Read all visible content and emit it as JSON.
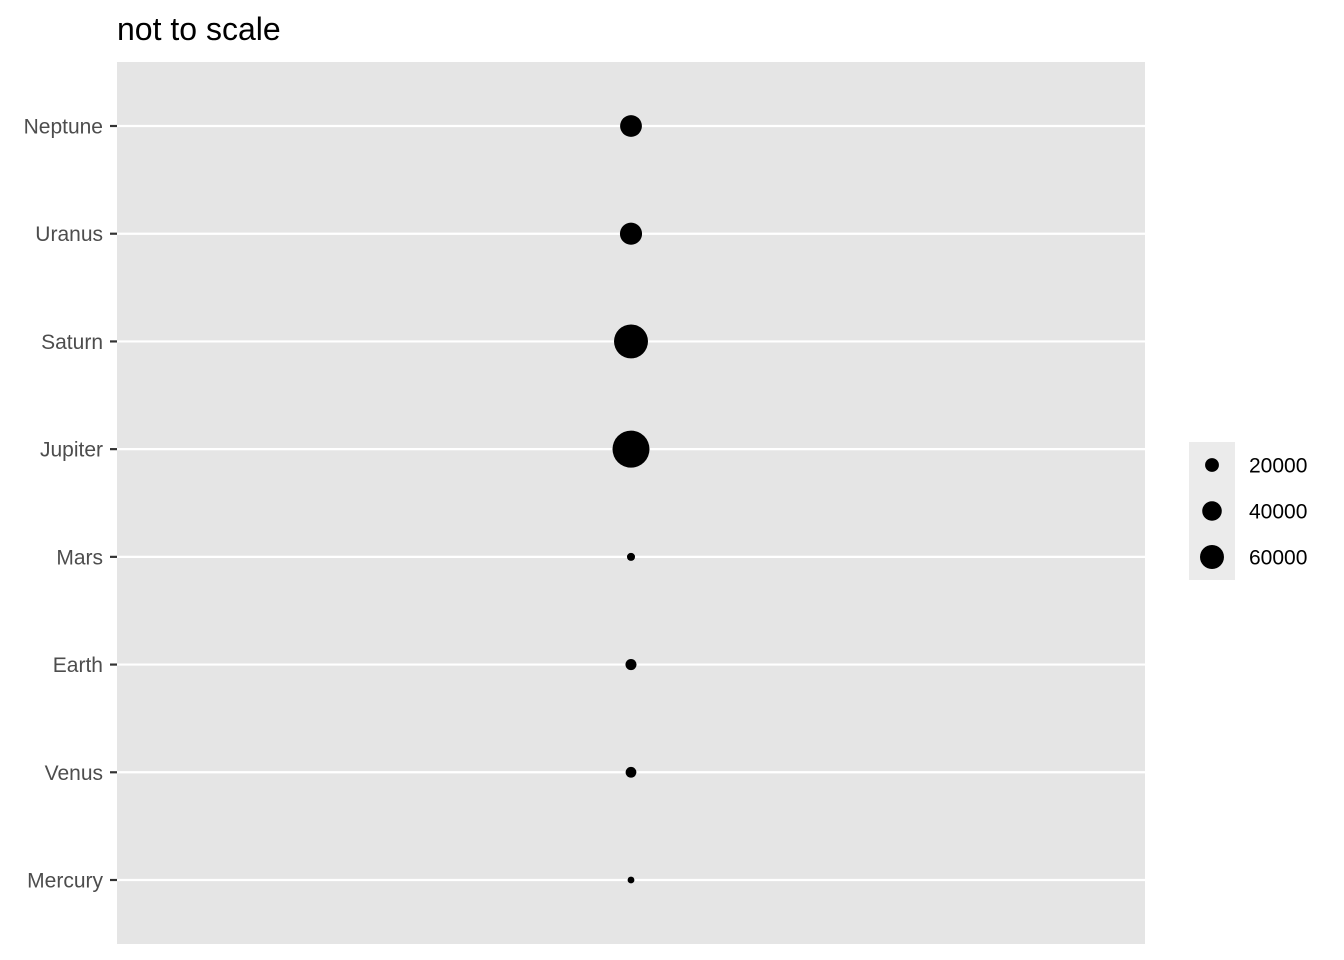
{
  "chart_data": {
    "type": "scatter",
    "title": "not to scale",
    "xlabel": "",
    "ylabel": "",
    "categories": [
      "Mercury",
      "Venus",
      "Earth",
      "Mars",
      "Jupiter",
      "Saturn",
      "Uranus",
      "Neptune"
    ],
    "size_values": [
      4879,
      12104,
      12756,
      6792,
      142984,
      120536,
      51118,
      49528
    ],
    "size_legend": {
      "title": "",
      "breaks": [
        20000,
        40000,
        60000
      ],
      "labels": [
        "20000",
        "40000",
        "60000"
      ]
    },
    "grid": true,
    "legend_position": "right",
    "colors": {
      "panel_background": "#e5e5e5",
      "grid_line": "#ffffff",
      "point": "#000000",
      "legend_key_background": "#ebebeb",
      "tick_text": "#4d4d4d"
    }
  }
}
